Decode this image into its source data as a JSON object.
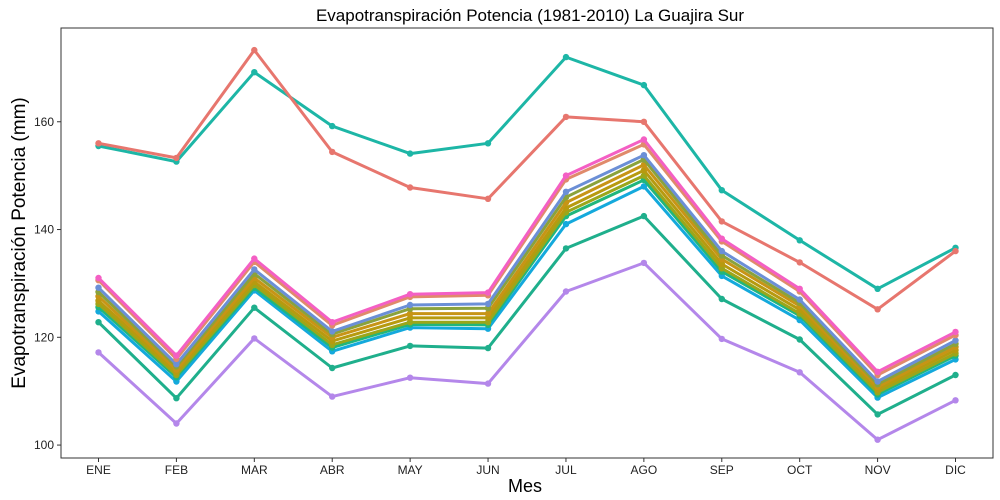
{
  "chart_data": {
    "type": "line",
    "title": "Evapotranspiración Potencia (1981-2010)  La Guajira Sur",
    "xlabel": "Mes",
    "ylabel": "Evapotranspiración Potencia  (mm)",
    "categories": [
      "ENE",
      "FEB",
      "MAR",
      "ABR",
      "MAY",
      "JUN",
      "JUL",
      "AGO",
      "SEP",
      "OCT",
      "NOV",
      "DIC"
    ],
    "ylim": [
      97.6,
      177.4
    ],
    "yticks": [
      100,
      120,
      140,
      160
    ],
    "grid": false,
    "legend": "none",
    "series": [
      {
        "color": "#e7766e",
        "values": [
          156.0,
          153.3,
          173.3,
          154.4,
          147.8,
          145.7,
          160.9,
          160.0,
          141.5,
          133.9,
          125.2,
          136.0
        ]
      },
      {
        "color": "#1db6a6",
        "values": [
          155.5,
          152.6,
          169.2,
          159.2,
          154.1,
          156.0,
          172.0,
          166.8,
          147.3,
          138.0,
          129.0,
          136.6
        ]
      },
      {
        "color": "#f45fc4",
        "values": [
          131.0,
          116.6,
          134.6,
          122.8,
          128.0,
          128.3,
          150.0,
          156.7,
          138.3,
          129.0,
          113.6,
          121.0
        ]
      },
      {
        "color": "#e08a6b",
        "values": [
          130.6,
          116.0,
          134.0,
          122.2,
          127.5,
          127.8,
          149.3,
          155.8,
          137.8,
          128.5,
          113.0,
          120.4
        ]
      },
      {
        "color": "#6b8fd6",
        "values": [
          129.2,
          115.0,
          132.6,
          121.1,
          126.0,
          126.2,
          147.0,
          153.8,
          136.0,
          127.0,
          111.8,
          119.4
        ]
      },
      {
        "color": "#8aa23c",
        "values": [
          128.4,
          114.6,
          131.8,
          120.6,
          125.3,
          125.4,
          146.0,
          153.0,
          135.2,
          126.4,
          111.3,
          118.8
        ]
      },
      {
        "color": "#c79416",
        "values": [
          127.6,
          114.0,
          131.0,
          120.0,
          124.4,
          124.4,
          145.0,
          152.0,
          134.5,
          125.8,
          110.8,
          118.2
        ]
      },
      {
        "color": "#b79a0f",
        "values": [
          126.8,
          113.5,
          130.3,
          119.3,
          123.6,
          123.6,
          144.0,
          151.0,
          133.6,
          125.1,
          110.3,
          117.6
        ]
      },
      {
        "color": "#9ba61a",
        "values": [
          126.2,
          113.0,
          129.7,
          118.6,
          122.8,
          122.8,
          143.2,
          150.0,
          132.8,
          124.4,
          109.8,
          117.0
        ]
      },
      {
        "color": "#20b67c",
        "values": [
          125.6,
          112.6,
          129.2,
          118.1,
          122.4,
          122.3,
          142.5,
          149.2,
          132.2,
          124.0,
          109.4,
          116.6
        ]
      },
      {
        "color": "#14a9dc",
        "values": [
          124.8,
          111.8,
          128.7,
          117.4,
          121.8,
          121.6,
          141.0,
          148.0,
          131.4,
          123.2,
          108.8,
          115.9
        ]
      },
      {
        "color": "#1faf8c",
        "values": [
          122.8,
          108.7,
          125.5,
          114.3,
          118.4,
          118.0,
          136.5,
          142.5,
          127.1,
          119.6,
          105.7,
          113.0
        ]
      },
      {
        "color": "#b487ea",
        "values": [
          117.2,
          104.0,
          119.8,
          109.0,
          112.5,
          111.4,
          128.5,
          133.8,
          119.7,
          113.5,
          101.0,
          108.3
        ]
      }
    ]
  }
}
